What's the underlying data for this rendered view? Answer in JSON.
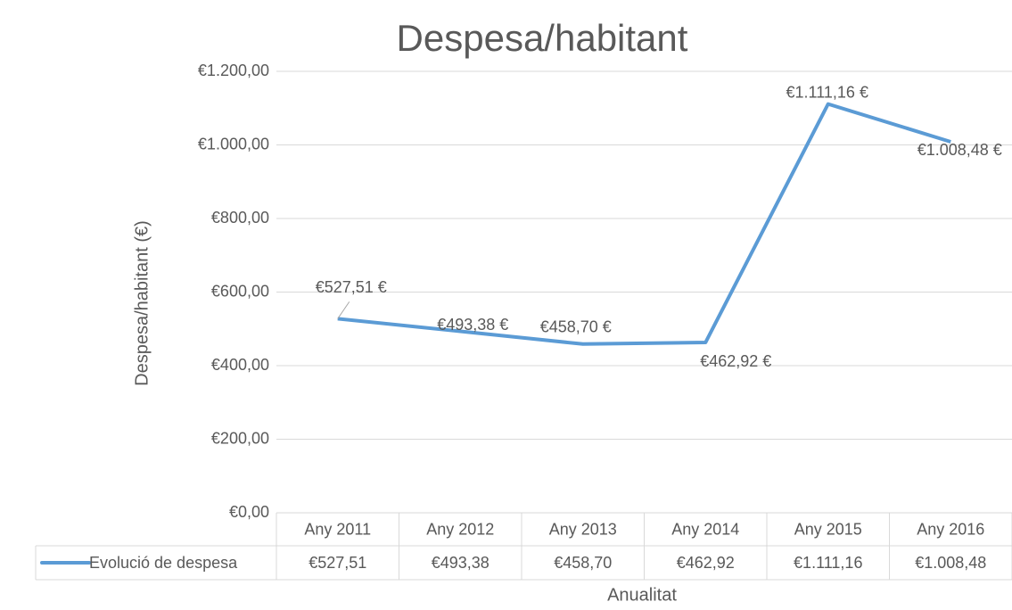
{
  "chart_data": {
    "type": "line",
    "title": "Despesa/habitant",
    "x_label": "Anualitat",
    "y_label": "Despesa/habitant (€)",
    "categories": [
      "Any 2011",
      "Any 2012",
      "Any 2013",
      "Any 2014",
      "Any 2015",
      "Any 2016"
    ],
    "series": [
      {
        "name": "Evolució de despesa",
        "color": "#5b9bd5",
        "values": [
          527.51,
          493.38,
          458.7,
          462.92,
          1111.16,
          1008.48
        ],
        "value_labels": [
          "€527,51 €",
          "€493,38 €",
          "€458,70 €",
          "€462,92 €",
          "€1.111,16 €",
          "€1.008,48 €"
        ],
        "table_labels": [
          "€527,51",
          "€493,38",
          "€458,70",
          "€462,92",
          "€1.111,16",
          "€1.008,48"
        ]
      }
    ],
    "ylim": [
      0,
      1200
    ],
    "yticks": [
      {
        "value": 0,
        "label": "€0,00"
      },
      {
        "value": 200,
        "label": "€200,00"
      },
      {
        "value": 400,
        "label": "€400,00"
      },
      {
        "value": 600,
        "label": "€600,00"
      },
      {
        "value": 800,
        "label": "€800,00"
      },
      {
        "value": 1000,
        "label": "€1.000,00"
      },
      {
        "value": 1200,
        "label": "€1.200,00"
      }
    ],
    "grid": true
  }
}
